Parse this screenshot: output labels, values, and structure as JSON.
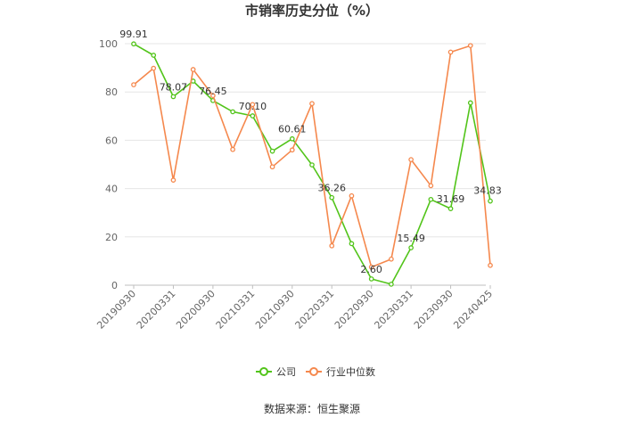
{
  "chart_data": {
    "type": "line",
    "title": "市销率历史分位（%）",
    "xlabel": "",
    "ylabel": "",
    "ylim": [
      0,
      100
    ],
    "yticks": [
      0,
      20,
      40,
      60,
      80,
      100
    ],
    "grid": true,
    "legend_position": "bottom",
    "x_tick_labels": [
      "20190930",
      "20200331",
      "20200930",
      "20210331",
      "20210930",
      "20220331",
      "20220930",
      "20230331",
      "20230930",
      "20240425"
    ],
    "series": [
      {
        "name": "公司",
        "color": "#52c41a",
        "values": [
          99.91,
          95.2,
          78.07,
          84.5,
          76.45,
          71.8,
          70.1,
          55.5,
          60.61,
          49.8,
          36.26,
          17.2,
          2.6,
          0.4,
          15.49,
          35.5,
          31.69,
          75.5,
          34.83
        ]
      },
      {
        "name": "行业中位数",
        "color": "#f5884d",
        "values": [
          83.0,
          89.8,
          43.5,
          89.3,
          78.5,
          56.2,
          74.8,
          49.0,
          56.0,
          75.2,
          16.3,
          37.0,
          7.5,
          10.8,
          52.0,
          41.2,
          96.5,
          99.2,
          8.2
        ]
      }
    ],
    "data_labels": [
      {
        "series": 0,
        "index": 0,
        "text": "99.91"
      },
      {
        "series": 0,
        "index": 2,
        "text": "78.07"
      },
      {
        "series": 0,
        "index": 4,
        "text": "76.45"
      },
      {
        "series": 0,
        "index": 6,
        "text": "70.10"
      },
      {
        "series": 0,
        "index": 8,
        "text": "60.61"
      },
      {
        "series": 0,
        "index": 10,
        "text": "36.26"
      },
      {
        "series": 0,
        "index": 12,
        "text": "2.60"
      },
      {
        "series": 0,
        "index": 14,
        "text": "15.49"
      },
      {
        "series": 0,
        "index": 16,
        "text": "31.69"
      },
      {
        "series": 0,
        "index": 18,
        "text": "34.83"
      }
    ]
  },
  "source": "数据来源：恒生聚源"
}
